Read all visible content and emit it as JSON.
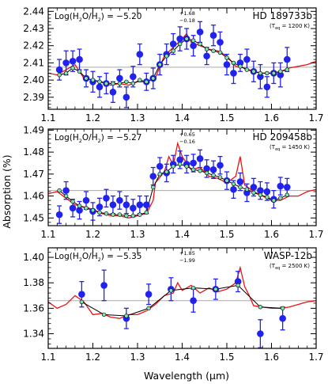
{
  "figure": {
    "ylabel": "Absorption (%)",
    "xlabel": "Wavelength (μm)",
    "x_ticks": [
      "1.1",
      "1.2",
      "1.3",
      "1.4",
      "1.5",
      "1.6",
      "1.7"
    ]
  },
  "chart_data": [
    {
      "type": "scatter",
      "planet": "HD 189733b",
      "teq_label": "(T",
      "teq_sub": "eq",
      "teq_value": " = 1200 K)",
      "abundance_prefix": "Log(H",
      "abundance_mid": "O/H",
      "abundance_suffix": ") = −5.20",
      "abundance_sub2": "2",
      "err_plus": "+1.68",
      "err_minus": "−0.18",
      "xlim": [
        1.1,
        1.7
      ],
      "ylim": [
        2.383,
        2.442
      ],
      "y_ticks": [
        "2.39",
        "2.40",
        "2.41",
        "2.42",
        "2.43",
        "2.44"
      ],
      "y_tick_values": [
        2.39,
        2.4,
        2.41,
        2.42,
        2.43,
        2.44
      ],
      "reference_level": 2.4075,
      "colors": {
        "data": "#2222ee",
        "model": "#ee1111",
        "binned": "#7fe0b0",
        "reference": "#aaaaaa"
      },
      "series": [
        {
          "name": "data",
          "x": [
            1.125,
            1.14,
            1.155,
            1.17,
            1.185,
            1.2,
            1.215,
            1.23,
            1.245,
            1.26,
            1.275,
            1.29,
            1.305,
            1.32,
            1.335,
            1.35,
            1.365,
            1.38,
            1.395,
            1.41,
            1.425,
            1.44,
            1.455,
            1.47,
            1.485,
            1.5,
            1.515,
            1.53,
            1.545,
            1.56,
            1.575,
            1.59,
            1.605,
            1.62,
            1.635
          ],
          "y": [
            2.406,
            2.41,
            2.411,
            2.412,
            2.401,
            2.399,
            2.396,
            2.398,
            2.393,
            2.401,
            2.39,
            2.402,
            2.415,
            2.399,
            2.401,
            2.409,
            2.415,
            2.421,
            2.424,
            2.424,
            2.42,
            2.428,
            2.414,
            2.426,
            2.422,
            2.409,
            2.404,
            2.41,
            2.412,
            2.405,
            2.402,
            2.396,
            2.404,
            2.403,
            2.412
          ],
          "err": [
            0.006,
            0.007,
            0.006,
            0.006,
            0.005,
            0.006,
            0.006,
            0.006,
            0.006,
            0.005,
            0.006,
            0.006,
            0.006,
            0.005,
            0.006,
            0.006,
            0.006,
            0.006,
            0.007,
            0.006,
            0.006,
            0.006,
            0.005,
            0.006,
            0.006,
            0.006,
            0.006,
            0.005,
            0.006,
            0.006,
            0.007,
            0.006,
            0.006,
            0.007,
            0.007
          ]
        },
        {
          "name": "binned model",
          "x": [
            1.125,
            1.14,
            1.155,
            1.17,
            1.185,
            1.2,
            1.215,
            1.23,
            1.245,
            1.26,
            1.275,
            1.29,
            1.305,
            1.32,
            1.335,
            1.35,
            1.365,
            1.38,
            1.395,
            1.41,
            1.425,
            1.44,
            1.455,
            1.47,
            1.485,
            1.5,
            1.515,
            1.53,
            1.545,
            1.56,
            1.575,
            1.59,
            1.605,
            1.62,
            1.635
          ],
          "y": [
            2.403,
            2.404,
            2.407,
            2.405,
            2.401,
            2.4,
            2.399,
            2.398,
            2.398,
            2.398,
            2.399,
            2.398,
            2.4,
            2.399,
            2.401,
            2.409,
            2.414,
            2.417,
            2.421,
            2.424,
            2.423,
            2.421,
            2.418,
            2.417,
            2.416,
            2.413,
            2.41,
            2.408,
            2.406,
            2.405,
            2.404,
            2.404,
            2.404,
            2.405,
            2.406
          ]
        },
        {
          "name": "model spectrum",
          "x": [
            1.1,
            1.12,
            1.14,
            1.16,
            1.18,
            1.2,
            1.22,
            1.24,
            1.26,
            1.28,
            1.3,
            1.32,
            1.34,
            1.35,
            1.36,
            1.38,
            1.4,
            1.41,
            1.42,
            1.44,
            1.46,
            1.48,
            1.5,
            1.52,
            1.54,
            1.56,
            1.58,
            1.6,
            1.62,
            1.64,
            1.66,
            1.68,
            1.7
          ],
          "y": [
            2.404,
            2.403,
            2.406,
            2.409,
            2.401,
            2.4,
            2.399,
            2.397,
            2.398,
            2.397,
            2.399,
            2.399,
            2.401,
            2.408,
            2.414,
            2.419,
            2.424,
            2.427,
            2.422,
            2.42,
            2.418,
            2.417,
            2.414,
            2.408,
            2.407,
            2.405,
            2.404,
            2.404,
            2.405,
            2.407,
            2.408,
            2.409,
            2.411
          ]
        }
      ]
    },
    {
      "type": "scatter",
      "planet": "HD 209458b",
      "teq_label": "(T",
      "teq_sub": "eq",
      "teq_value": " = 1450 K)",
      "abundance_prefix": "Log(H",
      "abundance_mid": "O/H",
      "abundance_suffix": ") = −5.27",
      "abundance_sub2": "2",
      "err_plus": "+0.65",
      "err_minus": "−0.16",
      "xlim": [
        1.1,
        1.7
      ],
      "ylim": [
        1.4465,
        1.4905
      ],
      "y_ticks": [
        "1.45",
        "1.46",
        "1.47",
        "1.48",
        "1.49"
      ],
      "y_tick_values": [
        1.45,
        1.46,
        1.47,
        1.48,
        1.49
      ],
      "reference_level": 1.4625,
      "colors": {
        "data": "#2222ee",
        "model": "#ee1111",
        "binned": "#7fe0b0",
        "reference": "#aaaaaa"
      },
      "series": [
        {
          "name": "data",
          "x": [
            1.125,
            1.14,
            1.155,
            1.17,
            1.185,
            1.2,
            1.215,
            1.23,
            1.245,
            1.26,
            1.275,
            1.29,
            1.305,
            1.32,
            1.335,
            1.35,
            1.365,
            1.38,
            1.395,
            1.41,
            1.425,
            1.44,
            1.455,
            1.47,
            1.485,
            1.5,
            1.515,
            1.53,
            1.545,
            1.56,
            1.575,
            1.59,
            1.605,
            1.62,
            1.635
          ],
          "y": [
            1.4515,
            1.4625,
            1.4545,
            1.4535,
            1.458,
            1.453,
            1.455,
            1.459,
            1.456,
            1.458,
            1.456,
            1.4545,
            1.456,
            1.456,
            1.469,
            1.4735,
            1.4705,
            1.4745,
            1.4765,
            1.4745,
            1.475,
            1.477,
            1.4725,
            1.472,
            1.474,
            1.467,
            1.463,
            1.4665,
            1.4615,
            1.464,
            1.4625,
            1.462,
            1.4585,
            1.4645,
            1.464
          ],
          "err": [
            0.004,
            0.004,
            0.004,
            0.004,
            0.004,
            0.004,
            0.004,
            0.004,
            0.004,
            0.004,
            0.004,
            0.004,
            0.004,
            0.004,
            0.004,
            0.004,
            0.004,
            0.004,
            0.004,
            0.004,
            0.004,
            0.004,
            0.004,
            0.004,
            0.004,
            0.004,
            0.004,
            0.004,
            0.004,
            0.004,
            0.004,
            0.004,
            0.004,
            0.004,
            0.004
          ]
        },
        {
          "name": "binned model",
          "x": [
            1.125,
            1.14,
            1.155,
            1.17,
            1.185,
            1.2,
            1.215,
            1.23,
            1.245,
            1.26,
            1.275,
            1.29,
            1.305,
            1.32,
            1.335,
            1.35,
            1.365,
            1.38,
            1.395,
            1.41,
            1.425,
            1.44,
            1.455,
            1.47,
            1.485,
            1.5,
            1.515,
            1.53,
            1.545,
            1.56,
            1.575,
            1.59,
            1.605,
            1.62,
            1.635
          ],
          "y": [
            1.4625,
            1.46,
            1.4575,
            1.4555,
            1.4545,
            1.4535,
            1.4525,
            1.452,
            1.4515,
            1.4515,
            1.451,
            1.451,
            1.4515,
            1.4525,
            1.464,
            1.47,
            1.471,
            1.4735,
            1.4745,
            1.4735,
            1.472,
            1.4715,
            1.4705,
            1.4695,
            1.4685,
            1.467,
            1.4655,
            1.464,
            1.463,
            1.4615,
            1.4605,
            1.4595,
            1.458,
            1.459,
            1.4605
          ]
        },
        {
          "name": "model spectrum",
          "x": [
            1.1,
            1.12,
            1.14,
            1.16,
            1.18,
            1.2,
            1.22,
            1.24,
            1.26,
            1.28,
            1.3,
            1.32,
            1.335,
            1.34,
            1.36,
            1.37,
            1.38,
            1.39,
            1.4,
            1.42,
            1.44,
            1.46,
            1.48,
            1.5,
            1.52,
            1.53,
            1.54,
            1.56,
            1.58,
            1.6,
            1.62,
            1.64,
            1.66,
            1.68,
            1.7
          ],
          "y": [
            1.461,
            1.462,
            1.459,
            1.456,
            1.455,
            1.454,
            1.452,
            1.451,
            1.451,
            1.45,
            1.451,
            1.452,
            1.458,
            1.466,
            1.471,
            1.478,
            1.474,
            1.484,
            1.478,
            1.472,
            1.473,
            1.469,
            1.468,
            1.466,
            1.469,
            1.478,
            1.465,
            1.462,
            1.46,
            1.458,
            1.458,
            1.46,
            1.46,
            1.462,
            1.463
          ]
        }
      ]
    },
    {
      "type": "scatter",
      "planet": "WASP-12b",
      "teq_label": "(T",
      "teq_sub": "eq",
      "teq_value": " = 2500 K)",
      "abundance_prefix": "Log(H",
      "abundance_mid": "O/H",
      "abundance_suffix": ") = −5.35",
      "abundance_sub2": "2",
      "err_plus": "+1.85",
      "err_minus": "−1.99",
      "xlim": [
        1.1,
        1.7
      ],
      "ylim": [
        1.3285,
        1.4075
      ],
      "y_ticks": [
        "1.34",
        "1.36",
        "1.38",
        "1.40"
      ],
      "y_tick_values": [
        1.34,
        1.36,
        1.38,
        1.4
      ],
      "reference_level": 1.366,
      "colors": {
        "data": "#2222ee",
        "model": "#ee1111",
        "binned": "#7fe0b0",
        "reference": "#aaaaaa"
      },
      "series": [
        {
          "name": "data",
          "x": [
            1.175,
            1.225,
            1.275,
            1.325,
            1.375,
            1.425,
            1.475,
            1.525,
            1.575,
            1.625
          ],
          "y": [
            1.371,
            1.378,
            1.352,
            1.371,
            1.375,
            1.366,
            1.375,
            1.381,
            1.34,
            1.352
          ],
          "err": [
            0.01,
            0.012,
            0.008,
            0.008,
            0.009,
            0.009,
            0.008,
            0.008,
            0.011,
            0.009
          ]
        },
        {
          "name": "binned model",
          "x": [
            1.175,
            1.225,
            1.275,
            1.325,
            1.375,
            1.425,
            1.475,
            1.525,
            1.575,
            1.625
          ],
          "y": [
            1.365,
            1.355,
            1.354,
            1.36,
            1.374,
            1.376,
            1.375,
            1.378,
            1.361,
            1.36
          ]
        },
        {
          "name": "model spectrum",
          "x": [
            1.1,
            1.12,
            1.14,
            1.16,
            1.18,
            1.2,
            1.22,
            1.24,
            1.26,
            1.28,
            1.3,
            1.32,
            1.34,
            1.36,
            1.38,
            1.39,
            1.4,
            1.42,
            1.44,
            1.46,
            1.48,
            1.5,
            1.52,
            1.53,
            1.54,
            1.55,
            1.56,
            1.58,
            1.6,
            1.62,
            1.64,
            1.66,
            1.68,
            1.7
          ],
          "y": [
            1.365,
            1.36,
            1.363,
            1.37,
            1.365,
            1.355,
            1.356,
            1.353,
            1.352,
            1.355,
            1.355,
            1.358,
            1.363,
            1.37,
            1.372,
            1.38,
            1.374,
            1.378,
            1.372,
            1.376,
            1.373,
            1.375,
            1.38,
            1.392,
            1.377,
            1.37,
            1.362,
            1.361,
            1.36,
            1.36,
            1.361,
            1.363,
            1.365,
            1.366
          ]
        }
      ]
    }
  ]
}
